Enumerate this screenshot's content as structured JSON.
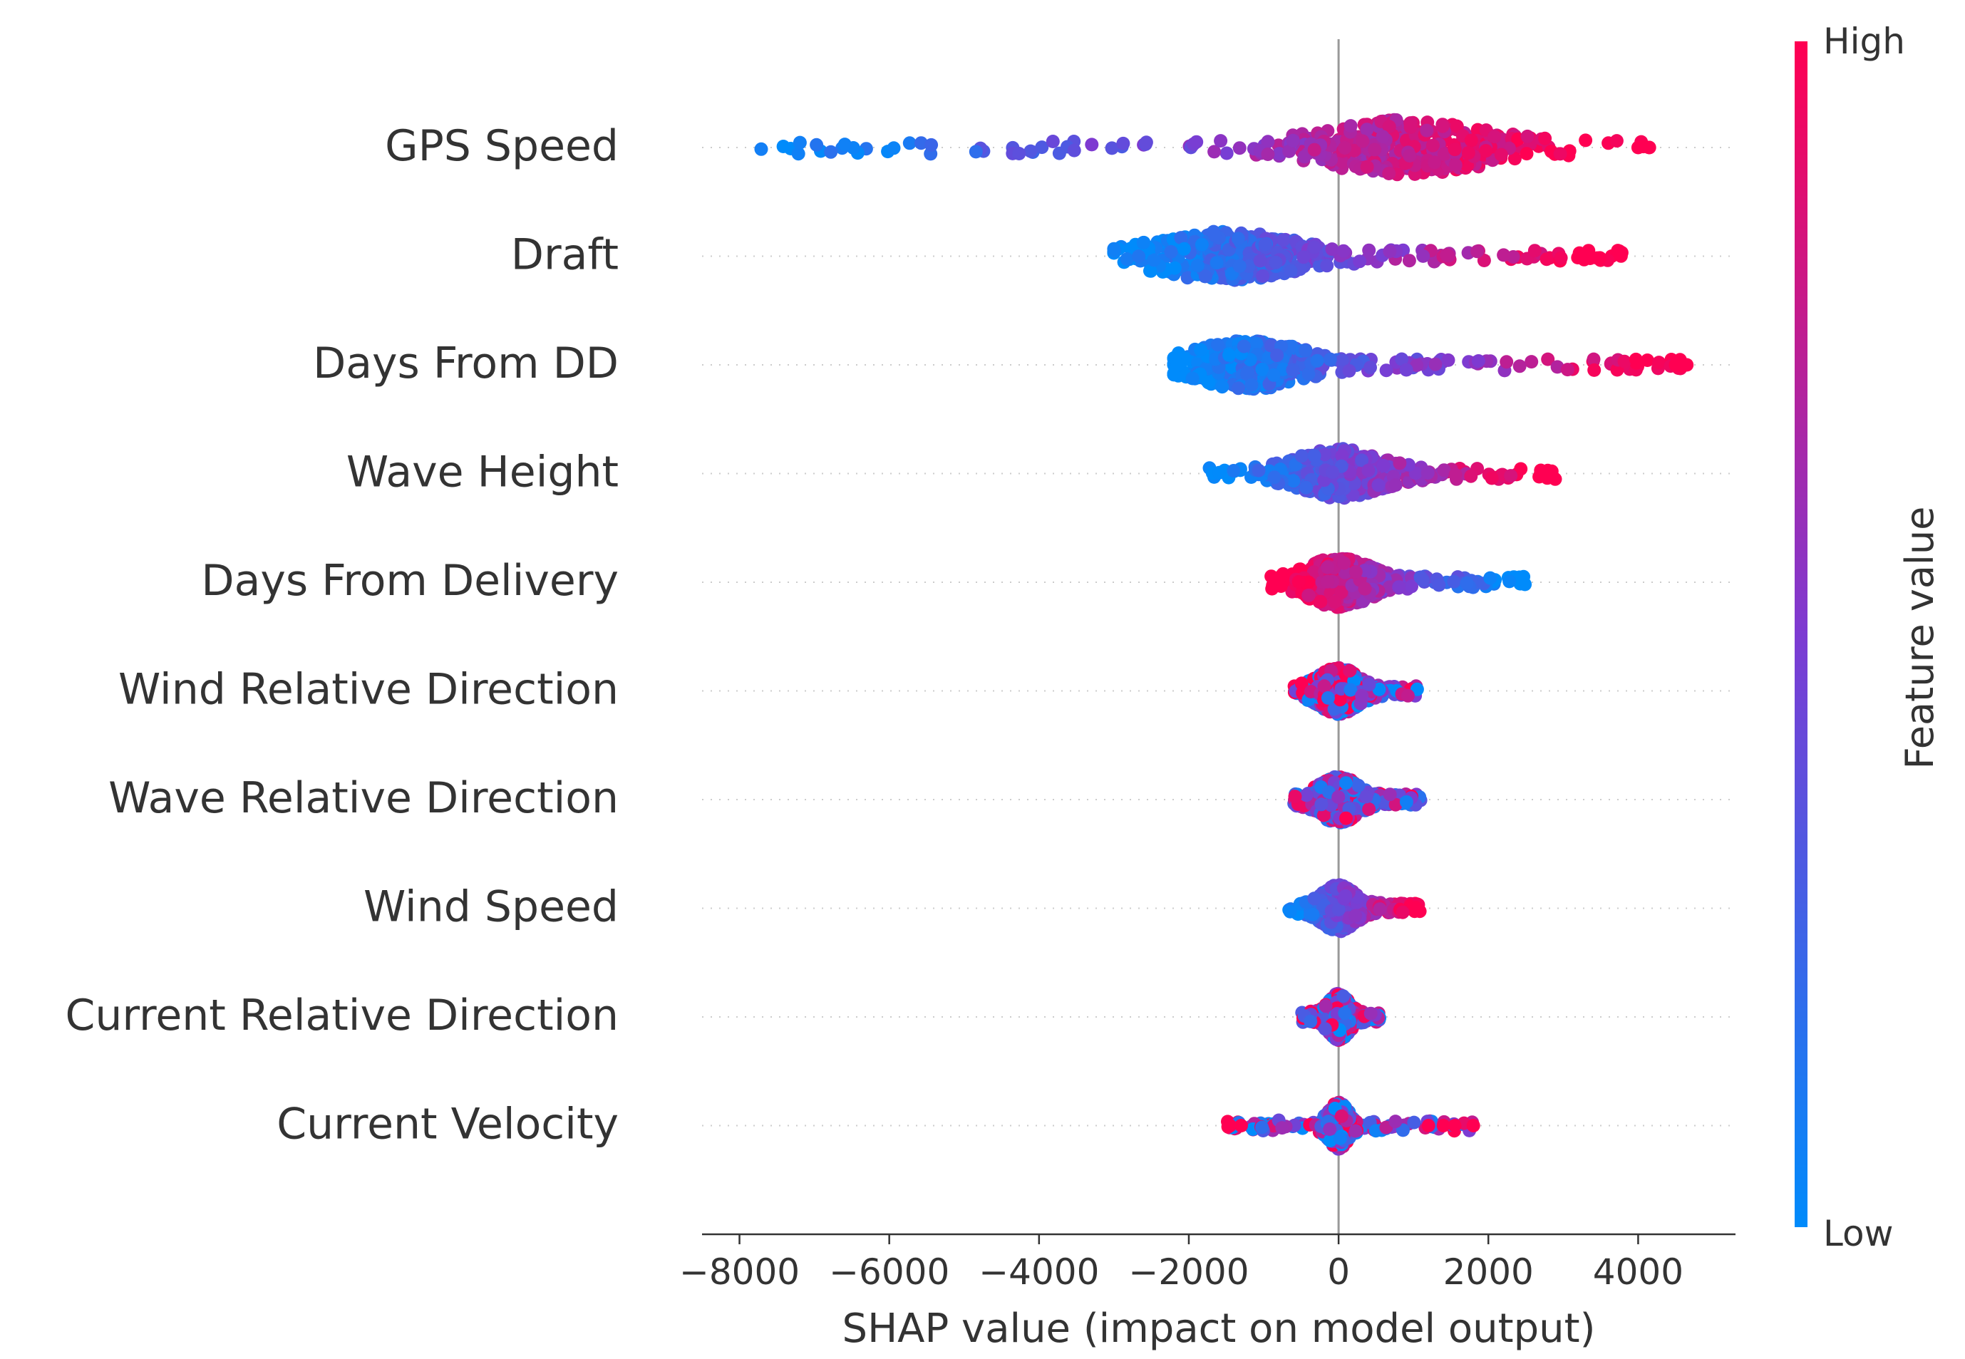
{
  "chart_data": {
    "type": "scatter",
    "subtype": "shap-beeswarm",
    "title": "",
    "xlabel": "SHAP value (impact on model output)",
    "ylabel": "",
    "xlim": [
      -8500,
      5300
    ],
    "xticks": [
      -8000,
      -6000,
      -4000,
      -2000,
      0,
      2000,
      4000
    ],
    "xtick_labels": [
      "−8000",
      "−6000",
      "−4000",
      "−2000",
      "0",
      "2000",
      "4000"
    ],
    "colorbar": {
      "label": "Feature value",
      "high_label": "High",
      "low_label": "Low",
      "low_color": "#008bfb",
      "high_color": "#ff0052"
    },
    "features": [
      {
        "name": "GPS Speed",
        "min": -7800,
        "max": 4200,
        "peak": 900,
        "spread": 1500,
        "width": 36,
        "low_side": "left",
        "outliers": [
          {
            "x": 4000,
            "c": 1.0
          },
          {
            "x": 4150,
            "c": 1.0
          }
        ]
      },
      {
        "name": "Draft",
        "min": -3000,
        "max": 3800,
        "peak": -1500,
        "spread": 1300,
        "width": 32,
        "low_side": "left",
        "outliers": []
      },
      {
        "name": "Days From DD",
        "min": -2200,
        "max": 4700,
        "peak": -1200,
        "spread": 1000,
        "width": 32,
        "low_side": "left",
        "outliers": [
          {
            "x": 4500,
            "c": 1.0
          },
          {
            "x": 4650,
            "c": 1.0
          },
          {
            "x": -2150,
            "c": 0.0
          }
        ]
      },
      {
        "name": "Wave Height",
        "min": -1800,
        "max": 2900,
        "peak": 0,
        "spread": 800,
        "width": 32,
        "low_side": "left",
        "outliers": []
      },
      {
        "name": "Days From Delivery",
        "min": -900,
        "max": 2500,
        "peak": 0,
        "spread": 600,
        "width": 32,
        "low_side": "right",
        "outliers": []
      },
      {
        "name": "Wind Relative Direction",
        "min": -600,
        "max": 1100,
        "peak": 0,
        "spread": 380,
        "width": 30,
        "low_side": "mixed",
        "outliers": []
      },
      {
        "name": "Wave Relative Direction",
        "min": -600,
        "max": 1100,
        "peak": 0,
        "spread": 380,
        "width": 30,
        "low_side": "mixed",
        "outliers": []
      },
      {
        "name": "Wind Speed",
        "min": -700,
        "max": 1100,
        "peak": 0,
        "spread": 320,
        "width": 30,
        "low_side": "left",
        "outliers": []
      },
      {
        "name": "Current Relative Direction",
        "min": -500,
        "max": 550,
        "peak": 0,
        "spread": 200,
        "width": 30,
        "low_side": "mixed",
        "outliers": []
      },
      {
        "name": "Current Velocity",
        "min": -1500,
        "max": 1900,
        "peak": 0,
        "spread": 180,
        "width": 30,
        "low_side": "mixed",
        "outliers": [
          {
            "x": -1450,
            "c": 1.0
          },
          {
            "x": -1300,
            "c": 1.0
          },
          {
            "x": 1200,
            "c": 1.0
          },
          {
            "x": 1400,
            "c": 1.0
          },
          {
            "x": 1550,
            "c": 1.0
          },
          {
            "x": 1800,
            "c": 1.0
          }
        ]
      }
    ]
  }
}
